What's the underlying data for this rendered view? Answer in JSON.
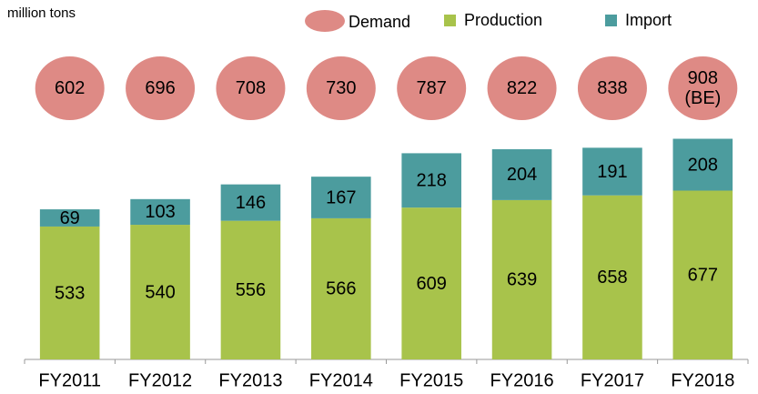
{
  "chart_data": {
    "type": "bar",
    "ylabel": "million tons",
    "categories": [
      "FY2011",
      "FY2012",
      "FY2013",
      "FY2014",
      "FY2015",
      "FY2016",
      "FY2017",
      "FY2018"
    ],
    "series": [
      {
        "name": "Demand",
        "color": "#de8a85",
        "mark": "bubble",
        "values": [
          602,
          696,
          708,
          730,
          787,
          822,
          838,
          908
        ],
        "value_labels": [
          "602",
          "696",
          "708",
          "730",
          "787",
          "822",
          "838",
          "908\n(BE)"
        ]
      },
      {
        "name": "Production",
        "color": "#a8c34b",
        "mark": "bar",
        "values": [
          533,
          540,
          556,
          566,
          609,
          639,
          658,
          677
        ]
      },
      {
        "name": "Import",
        "color": "#4c9c9e",
        "mark": "bar",
        "values": [
          69,
          103,
          146,
          167,
          218,
          204,
          191,
          208
        ]
      }
    ],
    "ylim": [
      0,
      1000
    ]
  }
}
